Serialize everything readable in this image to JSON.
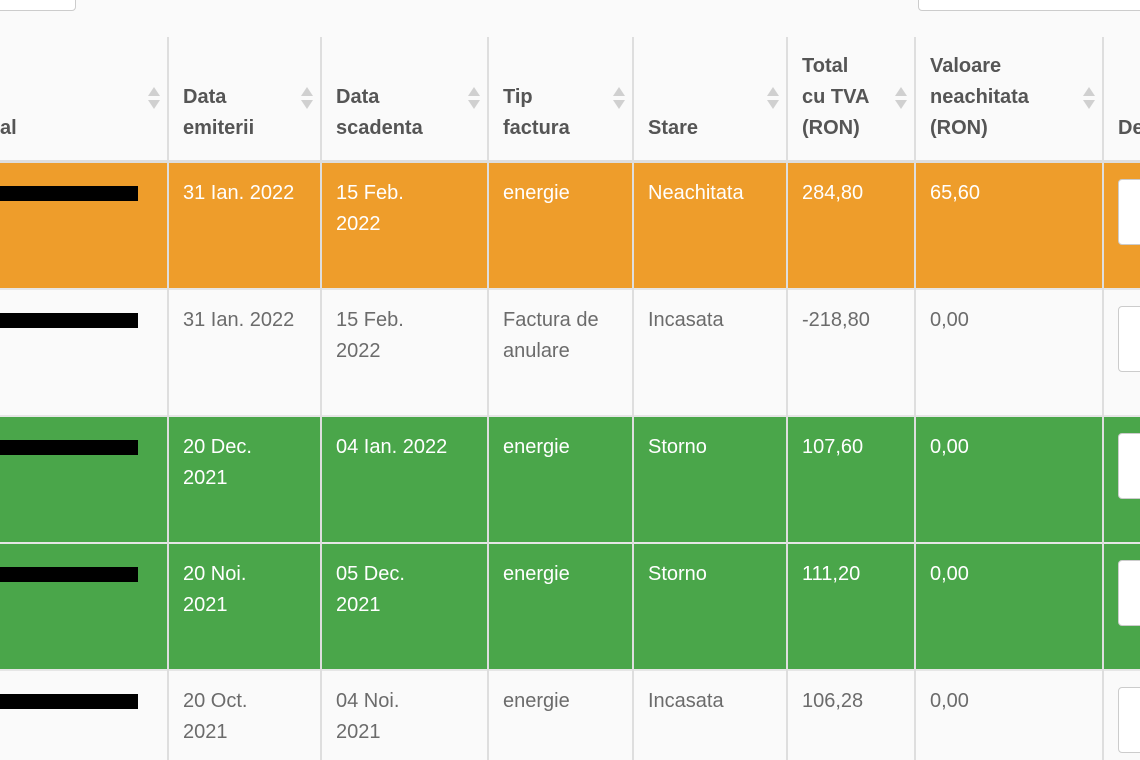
{
  "table": {
    "header": [
      "al",
      "Data emiterii",
      "Data scadenta",
      "Tip factura",
      "Stare",
      "Total cu TVA (RON)",
      "Valoare neachitata (RON)",
      "De"
    ],
    "rows": [
      {
        "color": "#ee9d2b",
        "text_color": "#ffffff",
        "cells": [
          "31 Ian. 2022",
          "15 Feb. 2022",
          "energie",
          "Neachitata",
          "284,80",
          "65,60"
        ]
      },
      {
        "color": "#fafafa",
        "text_color": "#6b6b6b",
        "cells": [
          "31 Ian. 2022",
          "15 Feb. 2022",
          "Factura de anulare",
          "Incasata",
          "-218,80",
          "0,00"
        ]
      },
      {
        "color": "#4aa64a",
        "text_color": "#ffffff",
        "cells": [
          "20 Dec. 2021",
          "04 Ian. 2022",
          "energie",
          "Storno",
          "107,60",
          "0,00"
        ]
      },
      {
        "color": "#4aa64a",
        "text_color": "#ffffff",
        "cells": [
          "20 Noi. 2021",
          "05 Dec. 2021",
          "energie",
          "Storno",
          "111,20",
          "0,00"
        ]
      },
      {
        "color": "#fafafa",
        "text_color": "#6b6b6b",
        "cells": [
          "20 Oct. 2021",
          "04 Noi. 2021",
          "energie",
          "Incasata",
          "106,28",
          "0,00"
        ]
      }
    ]
  }
}
